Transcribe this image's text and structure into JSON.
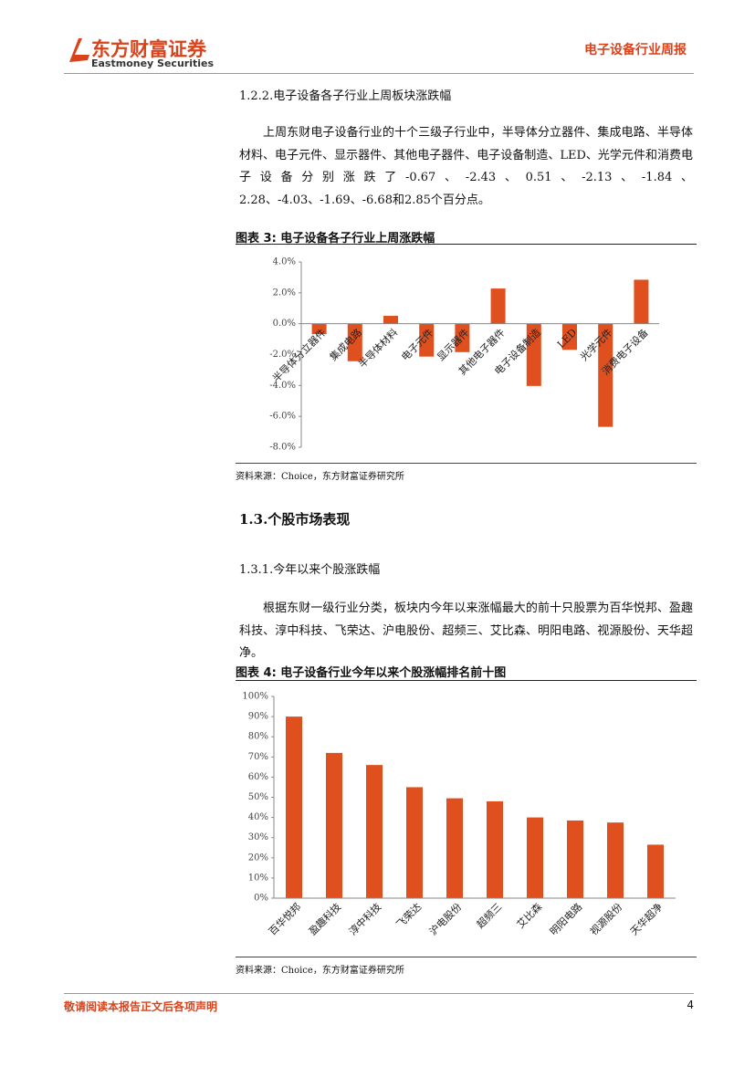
{
  "header": {
    "logo": "东方财富证券",
    "logo_en": "Eastmoney Securities",
    "report": "电子设备行业周报"
  },
  "sections": [
    {
      "heading": "1.2.2.电子设备各子行业上周板块涨跌幅",
      "paragraph": "上周东财电子设备行业的十个三级子行业中，半导体分立器件、集成电路、半导体材料、电子元件、显示器件、其他电子器件、电子设备制造、LED、光学元件和消费电子设备分别涨跌了-0.67、-2.43、0.51、-2.13、-1.84、2.28、-4.03、-1.69、-6.68和2.85个百分点。"
    },
    {
      "heading": "1.3.个股市场表现"
    },
    {
      "heading": "1.3.1.今年以来个股涨跌幅",
      "paragraph": "根据东财一级行业分类，板块内今年以来涨幅最大的前十只股票为百华悦邦、盈趣科技、淳中科技、飞荣达、沪电股份、超频三、艾比森、明阳电路、视源股份、天华超净。"
    }
  ],
  "chart_data": [
    {
      "type": "bar",
      "title": "图表 3:  电子设备各子行业上周涨跌幅",
      "source": "资料来源：Choice，东方财富证券研究所",
      "categories": [
        "半导体分立器件",
        "集成电路",
        "半导体材料",
        "电子元件",
        "显示器件",
        "其他电子器件",
        "电子设备制造",
        "LED",
        "光学元件",
        "消费电子设备"
      ],
      "values": [
        -0.67,
        -2.43,
        0.51,
        -2.13,
        -1.84,
        2.28,
        -4.03,
        -1.69,
        -6.68,
        2.85
      ],
      "color": "#e0501e",
      "ylim": [
        -8,
        4
      ],
      "yticks": [
        {
          "value": 4,
          "label": "4.0%"
        },
        {
          "value": 2,
          "label": "2.0%"
        },
        {
          "value": 0,
          "label": "0.0%"
        },
        {
          "value": -2,
          "label": "-2.0%"
        },
        {
          "value": -4,
          "label": "-4.0%"
        },
        {
          "value": -6,
          "label": "-6.0%"
        },
        {
          "value": -8,
          "label": "-8.0%"
        }
      ],
      "grid": false
    },
    {
      "type": "bar",
      "title": "图表 4:  电子设备行业今年以来个股涨幅排名前十图",
      "source": "资料来源：Choice，东方财富证券研究所",
      "categories": [
        "百华悦邦",
        "盈趣科技",
        "淳中科技",
        "飞荣达",
        "沪电股份",
        "超频三",
        "艾比森",
        "明阳电路",
        "视源股份",
        "天华超净"
      ],
      "values": [
        90,
        72,
        66,
        55,
        49.5,
        48,
        40,
        38.5,
        37.5,
        26.5
      ],
      "color": "#e0501e",
      "ylim": [
        0,
        100
      ],
      "yticks": [
        {
          "value": 100,
          "label": "100%"
        },
        {
          "value": 90,
          "label": "90%"
        },
        {
          "value": 80,
          "label": "80%"
        },
        {
          "value": 70,
          "label": "70%"
        },
        {
          "value": 60,
          "label": "60%"
        },
        {
          "value": 50,
          "label": "50%"
        },
        {
          "value": 40,
          "label": "40%"
        },
        {
          "value": 30,
          "label": "30%"
        },
        {
          "value": 20,
          "label": "20%"
        },
        {
          "value": 10,
          "label": "10%"
        },
        {
          "value": 0,
          "label": "0%"
        }
      ],
      "grid": false
    }
  ],
  "footer": {
    "disclaimer": "敬请阅读本报告正文后各项声明",
    "page": "4"
  }
}
